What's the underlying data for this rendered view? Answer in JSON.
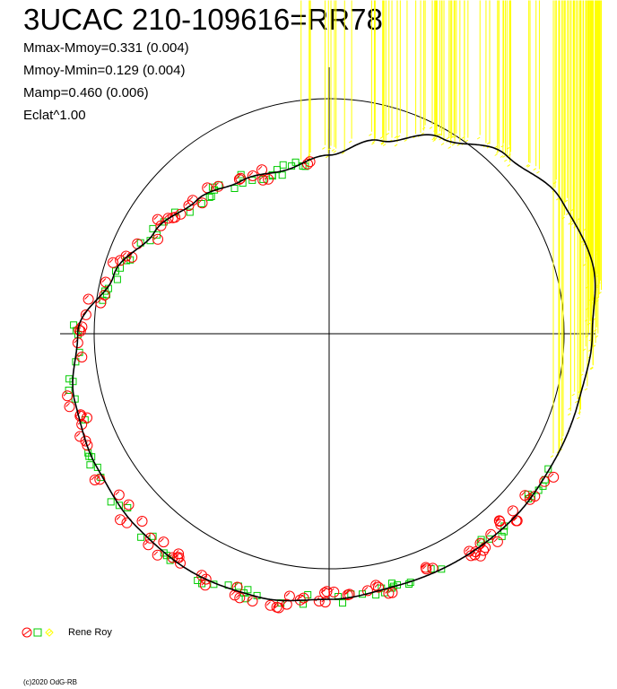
{
  "title": "3UCAC 210-109616=RR78",
  "stats": [
    "Mmax-Mmoy=0.331 (0.004)",
    "Mmoy-Mmin=0.129 (0.004)",
    "Mamp=0.460 (0.006)",
    "Eclat^1.00"
  ],
  "legend": {
    "observer": "Rene Roy"
  },
  "copyright": "(c)2020 OdG-RB",
  "colors": {
    "red": "#ff0000",
    "green": "#00cc00",
    "yellow": "#ffff00",
    "axis": "#000000"
  },
  "chart_data": {
    "type": "polar-lightcurve",
    "reference_circle_radius": 1.0,
    "series": [
      {
        "marker": "circle",
        "color": "#ff0000"
      },
      {
        "marker": "square",
        "color": "#00cc00"
      },
      {
        "marker": "diamond",
        "color": "#ffff00"
      }
    ],
    "fit_curve": {
      "angle_deg": [
        0,
        15,
        30,
        45,
        60,
        75,
        90,
        105,
        120,
        135,
        150,
        165,
        180,
        195,
        210,
        225,
        240,
        255,
        270,
        285,
        300,
        315,
        330,
        345,
        360
      ],
      "radius": [
        1.12,
        1.16,
        1.14,
        1.07,
        0.96,
        0.85,
        0.76,
        0.72,
        0.75,
        0.8,
        0.86,
        0.95,
        1.07,
        1.12,
        1.14,
        1.16,
        1.17,
        1.16,
        1.13,
        1.11,
        1.11,
        1.11,
        1.1,
        1.1,
        1.12
      ]
    },
    "points": {
      "red": {
        "angle_from": 95,
        "angle_to": 330,
        "count": 110
      },
      "green": {
        "angle_from": 95,
        "angle_to": 330,
        "count": 100
      },
      "yellow": {
        "angle_from": 330,
        "angle_to": 460,
        "count": 130
      }
    }
  }
}
